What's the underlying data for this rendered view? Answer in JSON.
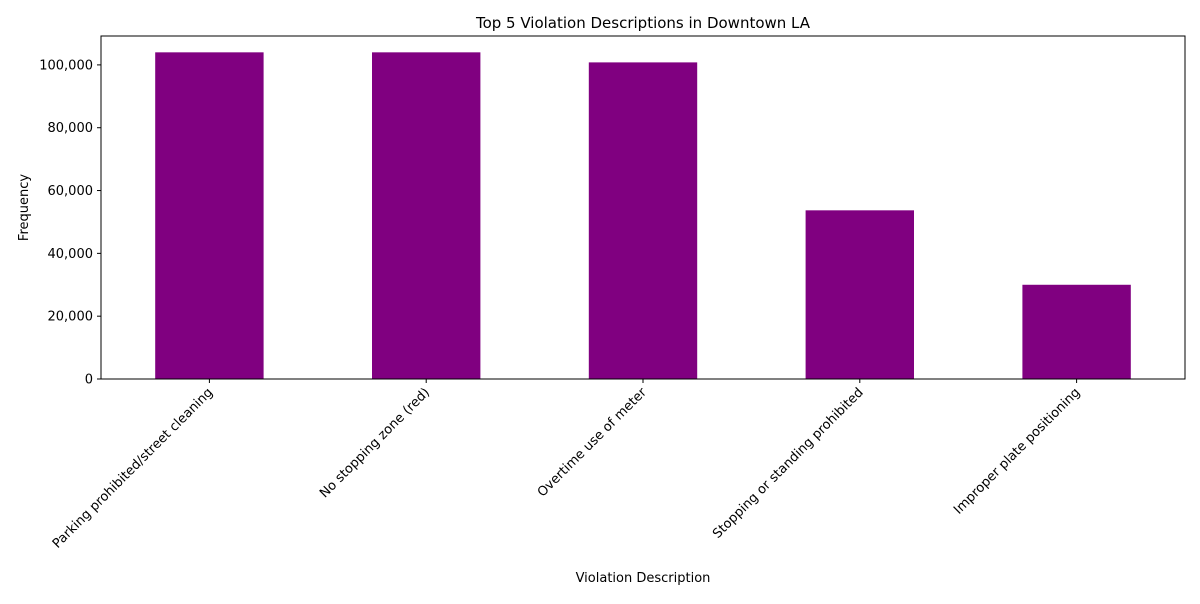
{
  "chart_data": {
    "type": "bar",
    "title": "Top 5 Violation Descriptions in Downtown LA",
    "xlabel": "Violation Description",
    "ylabel": "Frequency",
    "categories": [
      "Parking prohibited/street cleaning",
      "No stopping zone (red)",
      "Overtime use of meter",
      "Stopping or standing prohibited",
      "Improper plate positioning"
    ],
    "values": [
      104000,
      104000,
      100800,
      53700,
      30000
    ],
    "ylim": [
      0,
      109200
    ],
    "yticks": [
      0,
      20000,
      40000,
      60000,
      80000,
      100000
    ],
    "ytick_labels": [
      "0",
      "20,000",
      "40,000",
      "60,000",
      "80,000",
      "100,000"
    ],
    "bar_color": "#800080",
    "grid": false,
    "legend": "none"
  }
}
